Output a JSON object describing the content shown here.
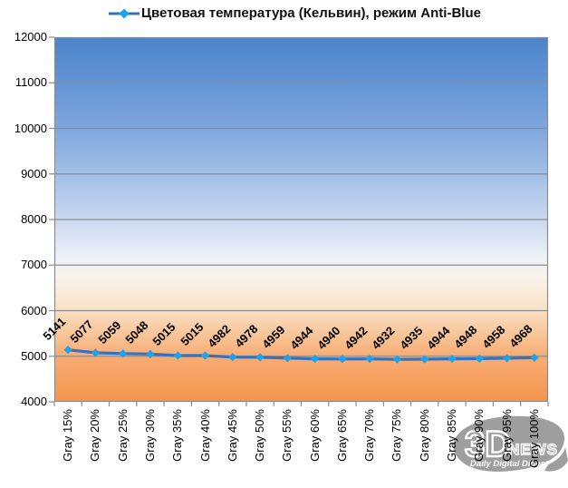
{
  "chart_data": {
    "type": "line",
    "legend": "Цветовая температура (Кельвин), режим Anti-Blue",
    "legend_position": "top",
    "categories": [
      "Gray 15%",
      "Gray 20%",
      "Gray 25%",
      "Gray 30%",
      "Gray 35%",
      "Gray 40%",
      "Gray 45%",
      "Gray 50%",
      "Gray 55%",
      "Gray 60%",
      "Gray 65%",
      "Gray 70%",
      "Gray 75%",
      "Gray 80%",
      "Gray 85%",
      "Gray 90%",
      "Gray 95%",
      "Gray 100%"
    ],
    "values": [
      5141,
      5077,
      5059,
      5048,
      5015,
      5015,
      4982,
      4978,
      4959,
      4944,
      4940,
      4942,
      4932,
      4935,
      4944,
      4948,
      4958,
      4968
    ],
    "data_labels_shown": true,
    "ylim": [
      4000,
      12000
    ],
    "ytick_step": 1000,
    "grid": true,
    "colors": {
      "line": "#3572BE",
      "marker": "#1EA2E8",
      "grid": "#8C8C8C",
      "axis": "#8C8C8C",
      "text": "#000000",
      "plot_bg_top": "#4C84CB",
      "plot_bg_middle": "#FAF3EA",
      "plot_bg_bottom": "#F6954E"
    }
  },
  "watermark": {
    "brand_main": "3D",
    "brand_secondary": "NEWS",
    "tagline": "Daily Digital Digest",
    "color": "#9E9E9E"
  }
}
